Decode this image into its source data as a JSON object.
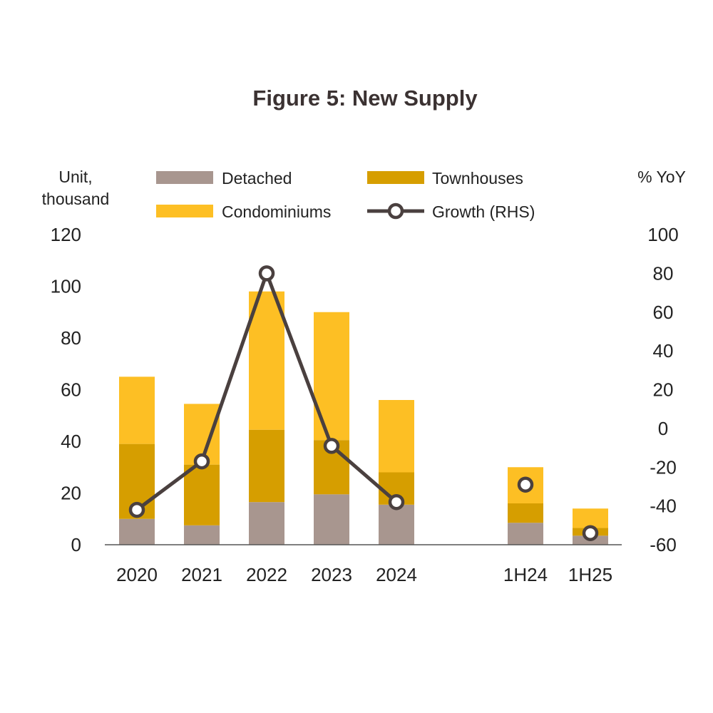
{
  "chart_data": {
    "type": "bar",
    "stacked": true,
    "title": "Figure 5: New Supply",
    "ylabel_left": [
      "Unit,",
      "thousand"
    ],
    "ylabel_right": "% YoY",
    "categories": [
      "2020",
      "2021",
      "2022",
      "2023",
      "2024",
      "1H24",
      "1H25"
    ],
    "ylim_left": [
      0,
      120
    ],
    "yticks_left": [
      "0",
      "20",
      "40",
      "60",
      "80",
      "100",
      "120"
    ],
    "ylim_right": [
      -60,
      100
    ],
    "yticks_right": [
      "-60",
      "-40",
      "-20",
      "0",
      "20",
      "40",
      "60",
      "80",
      "100"
    ],
    "series": [
      {
        "name": "Detached",
        "kind": "bar",
        "values": [
          10,
          7.5,
          16.5,
          19.5,
          15.5,
          8.5,
          3.5
        ]
      },
      {
        "name": "Townhouses",
        "kind": "bar",
        "values": [
          29,
          23.5,
          28,
          21,
          12.5,
          7.5,
          3
        ]
      },
      {
        "name": "Condominiums",
        "kind": "bar",
        "values": [
          26,
          23.5,
          53.5,
          49.5,
          28,
          14,
          7.5
        ]
      },
      {
        "name": "Growth (RHS)",
        "kind": "line",
        "axis": "right",
        "values": [
          -42,
          -17,
          80,
          -9,
          -38,
          -29,
          -54
        ],
        "segments": [
          [
            0,
            4
          ],
          [
            5,
            5
          ],
          [
            6,
            6
          ]
        ]
      }
    ],
    "legend": [
      "Detached",
      "Townhouses",
      "Condominiums",
      "Growth (RHS)"
    ],
    "legend_position": "top-center"
  },
  "colors": {
    "detached": "#a8968f",
    "townhouses": "#d69e00",
    "condominiums": "#fdbf24",
    "growth": "#4a403f",
    "axis": "#555555",
    "title": "#3b3232"
  }
}
